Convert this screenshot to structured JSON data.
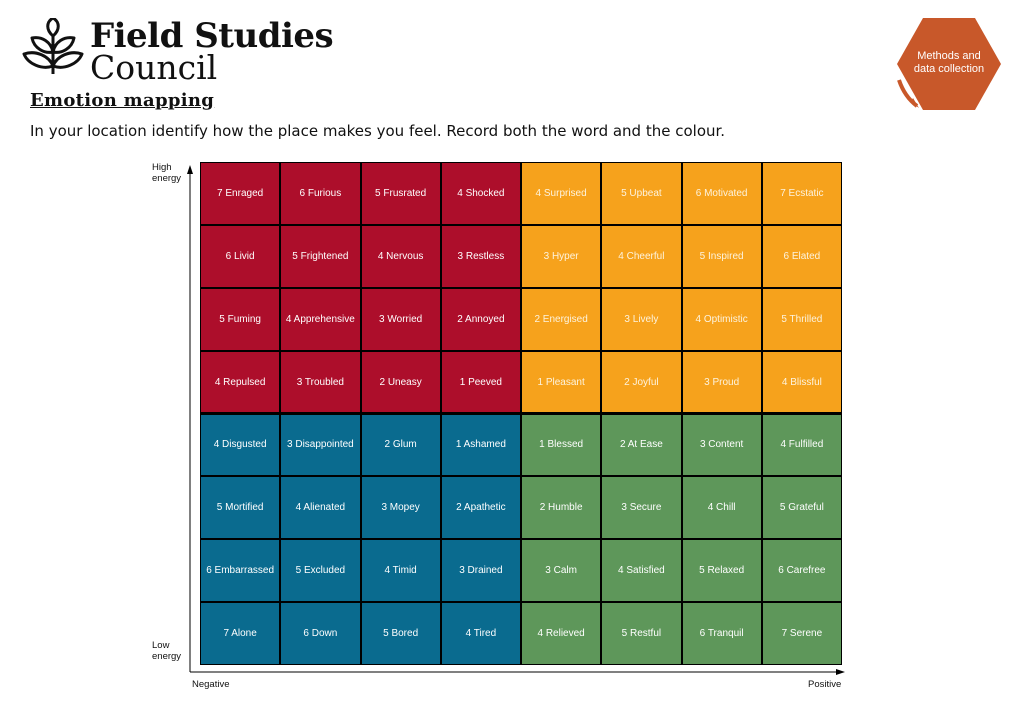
{
  "logo": {
    "line1": "Field Studies",
    "line2": "Council"
  },
  "badge": {
    "text": "Methods and data collection",
    "color": "#c8582a"
  },
  "heading": "Emotion mapping",
  "instruction": "In your location identify how the place makes you feel. Record both the word and the colour.",
  "axes": {
    "y_top": "High energy",
    "y_bottom": "Low energy",
    "x_left": "Negative",
    "x_right": "Positive"
  },
  "quadrant_colors": {
    "red": "#ad0e2b",
    "orange": "#f6a21c",
    "blue": "#0a6b8f",
    "green": "#5e975a"
  },
  "grid": [
    [
      "7 Enraged",
      "6 Furious",
      "5 Frusrated",
      "4 Shocked",
      "4 Surprised",
      "5 Upbeat",
      "6 Motivated",
      "7 Ecstatic"
    ],
    [
      "6 Livid",
      "5 Frightened",
      "4 Nervous",
      "3 Restless",
      "3 Hyper",
      "4 Cheerful",
      "5 Inspired",
      "6 Elated"
    ],
    [
      "5 Fuming",
      "4 Apprehensive",
      "3 Worried",
      "2 Annoyed",
      "2 Energised",
      "3 Lively",
      "4 Optimistic",
      "5 Thrilled"
    ],
    [
      "4 Repulsed",
      "3 Troubled",
      "2 Uneasy",
      "1 Peeved",
      "1 Pleasant",
      "2 Joyful",
      "3 Proud",
      "4 Blissful"
    ],
    [
      "4 Disgusted",
      "3 Disappointed",
      "2 Glum",
      "1 Ashamed",
      "1 Blessed",
      "2 At Ease",
      "3 Content",
      "4 Fulfilled"
    ],
    [
      "5 Mortified",
      "4 Alienated",
      "3 Mopey",
      "2 Apathetic",
      "2 Humble",
      "3 Secure",
      "4 Chill",
      "5 Grateful"
    ],
    [
      "6 Embarrassed",
      "5 Excluded",
      "4 Timid",
      "3 Drained",
      "3 Calm",
      "4 Satisfied",
      "5 Relaxed",
      "6 Carefree"
    ],
    [
      "7 Alone",
      "6 Down",
      "5 Bored",
      "4 Tired",
      "4 Relieved",
      "5 Restful",
      "6 Tranquil",
      "7 Serene"
    ]
  ]
}
